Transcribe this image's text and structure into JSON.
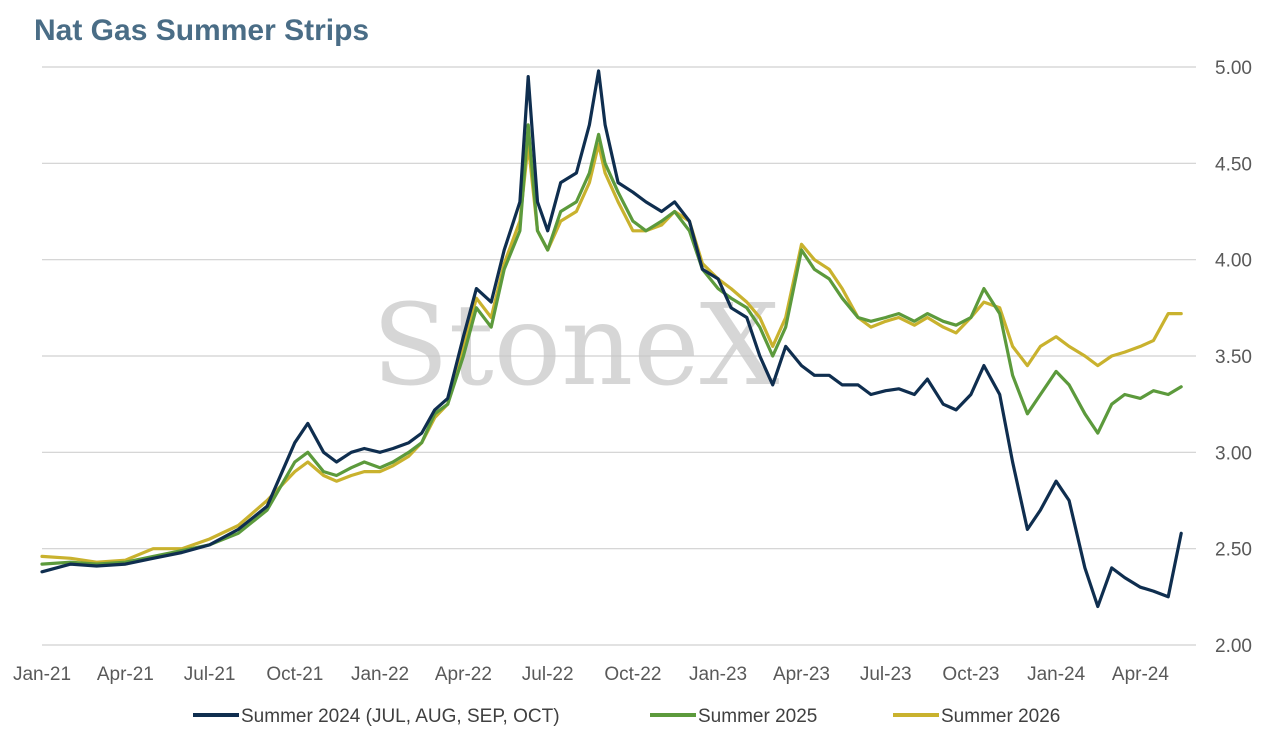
{
  "chart_data": {
    "type": "line",
    "title": "Nat Gas Summer Strips",
    "xlabel": "",
    "ylabel": "",
    "ylim": [
      2.0,
      5.0
    ],
    "y_ticks": [
      "2.00",
      "2.50",
      "3.00",
      "3.50",
      "4.00",
      "4.50",
      "5.00"
    ],
    "x_ticks": [
      "Jan-21",
      "Apr-21",
      "Jul-21",
      "Oct-21",
      "Jan-22",
      "Apr-22",
      "Jul-22",
      "Oct-22",
      "Jan-23",
      "Apr-23",
      "Jul-23",
      "Oct-23",
      "Jan-24",
      "Apr-24"
    ],
    "grid": true,
    "legend_position": "bottom",
    "watermark": "StoneX",
    "series": [
      {
        "name": "Summer 2024 (JUL, AUG, SEP, OCT)",
        "color": "#0f2e4f",
        "x": [
          "2021-01-01",
          "2021-02-01",
          "2021-03-01",
          "2021-04-01",
          "2021-05-01",
          "2021-06-01",
          "2021-07-01",
          "2021-08-01",
          "2021-09-01",
          "2021-10-01",
          "2021-10-15",
          "2021-11-01",
          "2021-11-15",
          "2021-12-01",
          "2021-12-15",
          "2022-01-01",
          "2022-01-15",
          "2022-02-01",
          "2022-02-15",
          "2022-03-01",
          "2022-03-15",
          "2022-04-01",
          "2022-04-15",
          "2022-05-01",
          "2022-05-15",
          "2022-06-01",
          "2022-06-10",
          "2022-06-20",
          "2022-07-01",
          "2022-07-15",
          "2022-08-01",
          "2022-08-15",
          "2022-08-25",
          "2022-09-01",
          "2022-09-15",
          "2022-10-01",
          "2022-10-15",
          "2022-11-01",
          "2022-11-15",
          "2022-12-01",
          "2022-12-15",
          "2023-01-01",
          "2023-01-15",
          "2023-02-01",
          "2023-02-15",
          "2023-03-01",
          "2023-03-15",
          "2023-04-01",
          "2023-04-15",
          "2023-05-01",
          "2023-05-15",
          "2023-06-01",
          "2023-06-15",
          "2023-07-01",
          "2023-07-15",
          "2023-08-01",
          "2023-08-15",
          "2023-09-01",
          "2023-09-15",
          "2023-10-01",
          "2023-10-15",
          "2023-11-01",
          "2023-11-15",
          "2023-12-01",
          "2023-12-15",
          "2024-01-01",
          "2024-01-15",
          "2024-02-01",
          "2024-02-15",
          "2024-03-01",
          "2024-03-15",
          "2024-04-01",
          "2024-04-15",
          "2024-05-01",
          "2024-05-15"
        ],
        "values": [
          2.38,
          2.42,
          2.41,
          2.42,
          2.45,
          2.48,
          2.52,
          2.6,
          2.72,
          3.05,
          3.15,
          3.0,
          2.95,
          3.0,
          3.02,
          3.0,
          3.02,
          3.05,
          3.1,
          3.22,
          3.28,
          3.6,
          3.85,
          3.78,
          4.05,
          4.3,
          4.95,
          4.3,
          4.15,
          4.4,
          4.45,
          4.7,
          4.98,
          4.7,
          4.4,
          4.35,
          4.3,
          4.25,
          4.3,
          4.2,
          3.95,
          3.9,
          3.75,
          3.7,
          3.5,
          3.35,
          3.55,
          3.45,
          3.4,
          3.4,
          3.35,
          3.35,
          3.3,
          3.32,
          3.33,
          3.3,
          3.38,
          3.25,
          3.22,
          3.3,
          3.45,
          3.3,
          2.95,
          2.6,
          2.7,
          2.85,
          2.75,
          2.4,
          2.2,
          2.4,
          2.35,
          2.3,
          2.28,
          2.25,
          2.58
        ]
      },
      {
        "name": "Summer 2025",
        "color": "#5c9a3c",
        "x": [
          "2021-01-01",
          "2021-02-01",
          "2021-03-01",
          "2021-04-01",
          "2021-05-01",
          "2021-06-01",
          "2021-07-01",
          "2021-08-01",
          "2021-09-01",
          "2021-10-01",
          "2021-10-15",
          "2021-11-01",
          "2021-11-15",
          "2021-12-01",
          "2021-12-15",
          "2022-01-01",
          "2022-01-15",
          "2022-02-01",
          "2022-02-15",
          "2022-03-01",
          "2022-03-15",
          "2022-04-01",
          "2022-04-15",
          "2022-05-01",
          "2022-05-15",
          "2022-06-01",
          "2022-06-10",
          "2022-06-20",
          "2022-07-01",
          "2022-07-15",
          "2022-08-01",
          "2022-08-15",
          "2022-08-25",
          "2022-09-01",
          "2022-09-15",
          "2022-10-01",
          "2022-10-15",
          "2022-11-01",
          "2022-11-15",
          "2022-12-01",
          "2022-12-15",
          "2023-01-01",
          "2023-01-15",
          "2023-02-01",
          "2023-02-15",
          "2023-03-01",
          "2023-03-15",
          "2023-04-01",
          "2023-04-15",
          "2023-05-01",
          "2023-05-15",
          "2023-06-01",
          "2023-06-15",
          "2023-07-01",
          "2023-07-15",
          "2023-08-01",
          "2023-08-15",
          "2023-09-01",
          "2023-09-15",
          "2023-10-01",
          "2023-10-15",
          "2023-11-01",
          "2023-11-15",
          "2023-12-01",
          "2023-12-15",
          "2024-01-01",
          "2024-01-15",
          "2024-02-01",
          "2024-02-15",
          "2024-03-01",
          "2024-03-15",
          "2024-04-01",
          "2024-04-15",
          "2024-05-01",
          "2024-05-15"
        ],
        "values": [
          2.42,
          2.43,
          2.42,
          2.43,
          2.46,
          2.49,
          2.52,
          2.58,
          2.7,
          2.95,
          3.0,
          2.9,
          2.88,
          2.92,
          2.95,
          2.92,
          2.95,
          3.0,
          3.05,
          3.2,
          3.25,
          3.5,
          3.75,
          3.65,
          3.95,
          4.15,
          4.7,
          4.15,
          4.05,
          4.25,
          4.3,
          4.45,
          4.65,
          4.5,
          4.35,
          4.2,
          4.15,
          4.2,
          4.25,
          4.15,
          3.95,
          3.85,
          3.8,
          3.75,
          3.65,
          3.5,
          3.65,
          4.05,
          3.95,
          3.9,
          3.8,
          3.7,
          3.68,
          3.7,
          3.72,
          3.68,
          3.72,
          3.68,
          3.66,
          3.7,
          3.85,
          3.72,
          3.4,
          3.2,
          3.3,
          3.42,
          3.35,
          3.2,
          3.1,
          3.25,
          3.3,
          3.28,
          3.32,
          3.3,
          3.34
        ]
      },
      {
        "name": "Summer 2026",
        "color": "#c9b22e",
        "x": [
          "2021-01-01",
          "2021-02-01",
          "2021-03-01",
          "2021-04-01",
          "2021-05-01",
          "2021-06-01",
          "2021-07-01",
          "2021-08-01",
          "2021-09-01",
          "2021-10-01",
          "2021-10-15",
          "2021-11-01",
          "2021-11-15",
          "2021-12-01",
          "2021-12-15",
          "2022-01-01",
          "2022-01-15",
          "2022-02-01",
          "2022-02-15",
          "2022-03-01",
          "2022-03-15",
          "2022-04-01",
          "2022-04-15",
          "2022-05-01",
          "2022-05-15",
          "2022-06-01",
          "2022-06-10",
          "2022-06-20",
          "2022-07-01",
          "2022-07-15",
          "2022-08-01",
          "2022-08-15",
          "2022-08-25",
          "2022-09-01",
          "2022-09-15",
          "2022-10-01",
          "2022-10-15",
          "2022-11-01",
          "2022-11-15",
          "2022-12-01",
          "2022-12-15",
          "2023-01-01",
          "2023-01-15",
          "2023-02-01",
          "2023-02-15",
          "2023-03-01",
          "2023-03-15",
          "2023-04-01",
          "2023-04-15",
          "2023-05-01",
          "2023-05-15",
          "2023-06-01",
          "2023-06-15",
          "2023-07-01",
          "2023-07-15",
          "2023-08-01",
          "2023-08-15",
          "2023-09-01",
          "2023-09-15",
          "2023-10-01",
          "2023-10-15",
          "2023-11-01",
          "2023-11-15",
          "2023-12-01",
          "2023-12-15",
          "2024-01-01",
          "2024-01-15",
          "2024-02-01",
          "2024-02-15",
          "2024-03-01",
          "2024-03-15",
          "2024-04-01",
          "2024-04-15",
          "2024-05-01",
          "2024-05-15"
        ],
        "values": [
          2.46,
          2.45,
          2.43,
          2.44,
          2.5,
          2.5,
          2.55,
          2.62,
          2.75,
          2.9,
          2.95,
          2.88,
          2.85,
          2.88,
          2.9,
          2.9,
          2.93,
          2.98,
          3.05,
          3.18,
          3.25,
          3.55,
          3.8,
          3.7,
          3.98,
          4.2,
          4.6,
          4.15,
          4.05,
          4.2,
          4.25,
          4.4,
          4.6,
          4.45,
          4.3,
          4.15,
          4.15,
          4.18,
          4.25,
          4.2,
          3.98,
          3.9,
          3.85,
          3.78,
          3.7,
          3.55,
          3.7,
          4.08,
          4.0,
          3.95,
          3.85,
          3.7,
          3.65,
          3.68,
          3.7,
          3.66,
          3.7,
          3.65,
          3.62,
          3.7,
          3.78,
          3.75,
          3.55,
          3.45,
          3.55,
          3.6,
          3.55,
          3.5,
          3.45,
          3.5,
          3.52,
          3.55,
          3.58,
          3.72,
          3.72
        ]
      }
    ]
  }
}
